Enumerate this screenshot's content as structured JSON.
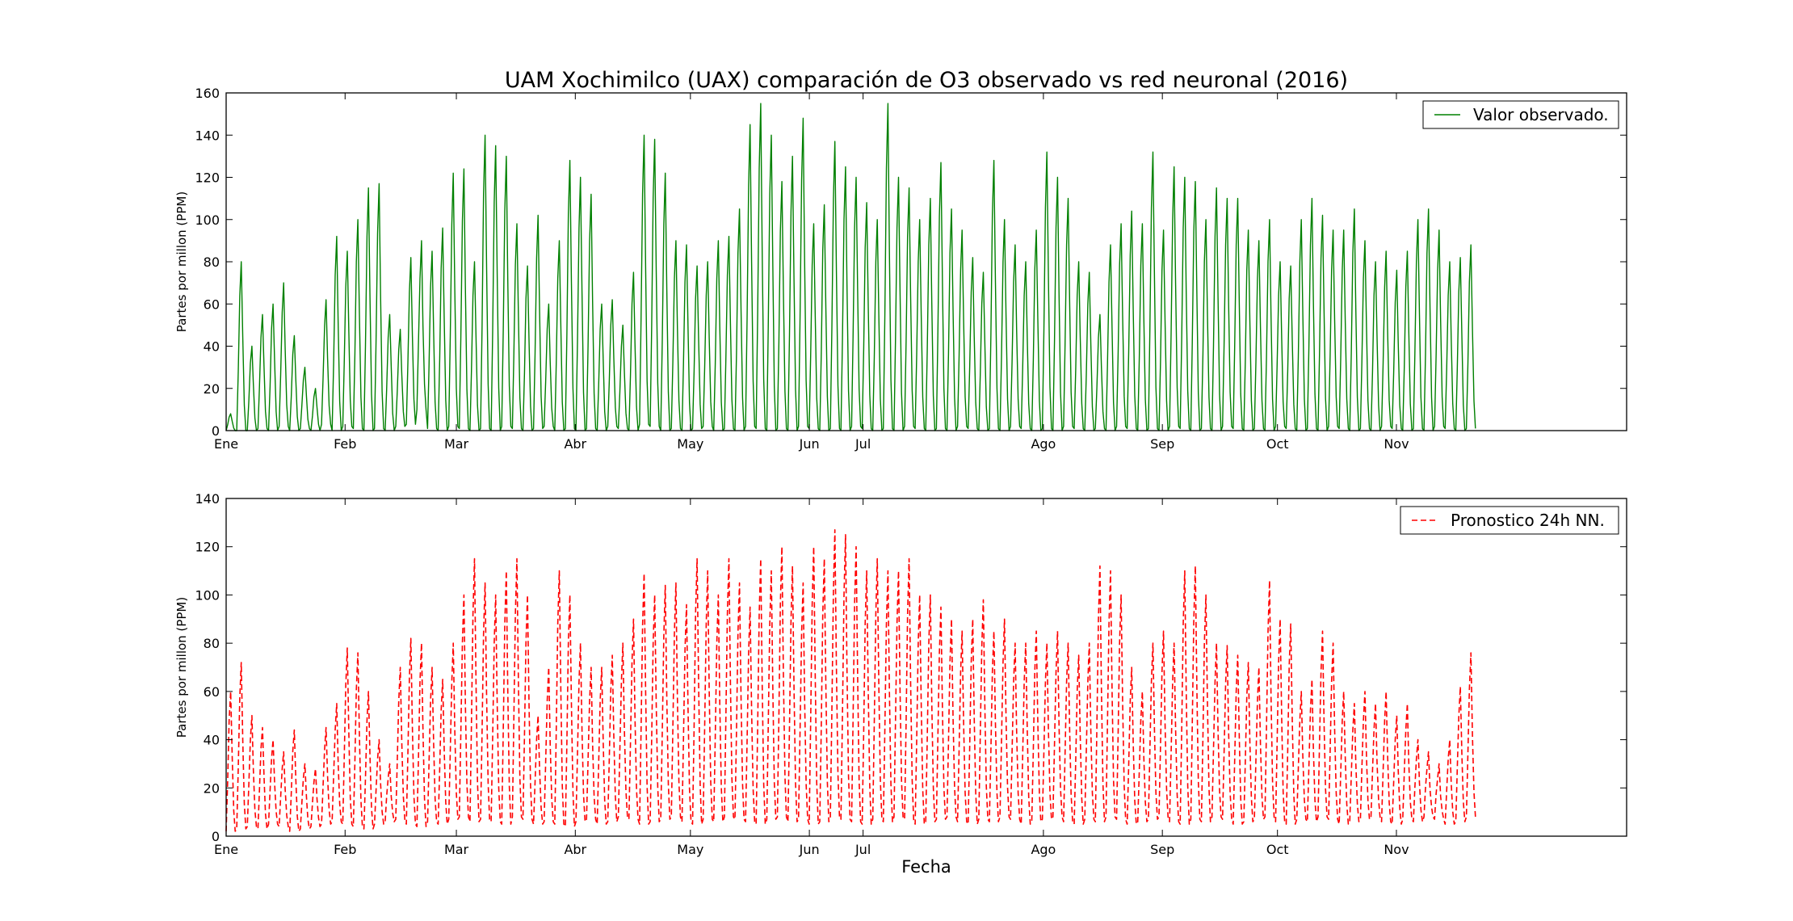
{
  "figure": {
    "title": "UAM Xochimilco (UAX) comparación de O3 observado vs red neuronal (2016)",
    "xlabel": "Fecha"
  },
  "chart_data": [
    {
      "type": "line",
      "title": "UAM Xochimilco (UAX) comparación de O3 observado vs red neuronal (2016)",
      "xlabel": "",
      "ylabel": "Partes por millon (PPM)",
      "x_axis": "date",
      "xlim": [
        "2016-01-01",
        "2016-12-31"
      ],
      "ylim": [
        0,
        160
      ],
      "yticks": [
        0,
        20,
        40,
        60,
        80,
        100,
        120,
        140,
        160
      ],
      "xticks": [
        {
          "date": "2016-01-01",
          "label": "Ene"
        },
        {
          "date": "2016-02-01",
          "label": "Feb"
        },
        {
          "date": "2016-03-01",
          "label": "Mar"
        },
        {
          "date": "2016-04-01",
          "label": "Abr"
        },
        {
          "date": "2016-05-01",
          "label": "May"
        },
        {
          "date": "2016-06-01",
          "label": "Jun"
        },
        {
          "date": "2016-06-15",
          "label": "Jul"
        },
        {
          "date": "2016-08-01",
          "label": "Ago"
        },
        {
          "date": "2016-09-01",
          "label": "Sep"
        },
        {
          "date": "2016-10-01",
          "label": "Oct"
        },
        {
          "date": "2016-11-01",
          "label": "Nov"
        }
      ],
      "legend": {
        "placement": "top-right"
      },
      "grid": false,
      "series": [
        {
          "name": "Valor observado.",
          "color": "#008000",
          "style": "solid",
          "data_range": [
            "2016-01-01",
            "2016-11-22"
          ],
          "daily_peaks": [
            8,
            80,
            40,
            55,
            60,
            70,
            45,
            30,
            20,
            62,
            92,
            85,
            100,
            115,
            117,
            55,
            48,
            82,
            90,
            85,
            96,
            122,
            124,
            80,
            140,
            135,
            130,
            98,
            78,
            102,
            60,
            90,
            128,
            120,
            112,
            60,
            62,
            50,
            75,
            140,
            138,
            122,
            90,
            88,
            78,
            80,
            90,
            92,
            105,
            145,
            155,
            140,
            118,
            130,
            148,
            98,
            107,
            137,
            125,
            120,
            108,
            100,
            155,
            120,
            115,
            100,
            110,
            127,
            105,
            95,
            82,
            75,
            128,
            100,
            88,
            80,
            95,
            132,
            120,
            110,
            80,
            75,
            55,
            88,
            98,
            104,
            98,
            132,
            95,
            125,
            120,
            118,
            100,
            115,
            110,
            110,
            95,
            90,
            100,
            80,
            78,
            100,
            110,
            102,
            95,
            95,
            105,
            90,
            80,
            85,
            76,
            85,
            100,
            105,
            95,
            80,
            82,
            88
          ],
          "daily_minima": [
            0,
            0,
            0,
            1,
            0,
            2,
            0,
            1,
            0,
            3,
            0,
            2,
            1,
            0,
            1,
            0,
            2,
            3,
            10,
            1,
            0,
            2,
            1,
            0,
            1,
            0,
            2,
            1,
            0,
            1,
            2,
            0,
            1,
            0,
            1,
            0,
            2,
            1,
            0,
            3,
            2,
            0,
            1,
            0,
            1,
            2,
            0,
            1,
            0,
            2,
            1,
            0,
            1,
            0,
            2,
            1,
            0,
            1,
            0,
            2,
            1,
            0,
            1,
            0,
            2,
            1,
            0,
            1,
            0,
            2,
            1,
            0,
            1,
            0,
            2,
            1,
            0,
            1,
            0,
            2,
            1,
            0,
            1,
            0,
            2,
            1,
            0,
            1,
            0,
            2,
            1,
            0,
            1,
            0,
            2,
            1,
            0,
            1,
            0,
            2,
            1,
            0,
            1,
            0,
            2,
            1,
            0,
            1,
            0,
            2,
            1,
            0,
            1,
            0,
            2,
            1,
            0,
            1
          ]
        }
      ]
    },
    {
      "type": "line",
      "title": "",
      "xlabel": "Fecha",
      "ylabel": "Partes por millon (PPM)",
      "x_axis": "date",
      "xlim": [
        "2016-01-01",
        "2016-12-31"
      ],
      "ylim": [
        0,
        140
      ],
      "yticks": [
        0,
        20,
        40,
        60,
        80,
        100,
        120,
        140
      ],
      "xticks": [
        {
          "date": "2016-01-01",
          "label": "Ene"
        },
        {
          "date": "2016-02-01",
          "label": "Feb"
        },
        {
          "date": "2016-03-01",
          "label": "Mar"
        },
        {
          "date": "2016-04-01",
          "label": "Abr"
        },
        {
          "date": "2016-05-01",
          "label": "May"
        },
        {
          "date": "2016-06-01",
          "label": "Jun"
        },
        {
          "date": "2016-06-15",
          "label": "Jul"
        },
        {
          "date": "2016-08-01",
          "label": "Ago"
        },
        {
          "date": "2016-09-01",
          "label": "Sep"
        },
        {
          "date": "2016-10-01",
          "label": "Oct"
        },
        {
          "date": "2016-11-01",
          "label": "Nov"
        }
      ],
      "legend": {
        "placement": "top-right"
      },
      "grid": false,
      "series": [
        {
          "name": "Pronostico 24h NN.",
          "color": "#ff0000",
          "style": "dashed",
          "data_range": [
            "2016-01-01",
            "2016-11-22"
          ],
          "daily_peaks": [
            60,
            72,
            50,
            45,
            40,
            35,
            44,
            30,
            28,
            45,
            55,
            78,
            76,
            60,
            40,
            30,
            70,
            82,
            80,
            70,
            65,
            80,
            100,
            115,
            105,
            100,
            110,
            115,
            100,
            50,
            70,
            110,
            100,
            80,
            70,
            70,
            75,
            80,
            90,
            109,
            100,
            104,
            105,
            96,
            115,
            110,
            100,
            115,
            105,
            95,
            115,
            110,
            120,
            112,
            105,
            120,
            115,
            127,
            125,
            120,
            110,
            115,
            110,
            110,
            115,
            100,
            100,
            95,
            90,
            85,
            90,
            98,
            85,
            90,
            80,
            80,
            85,
            80,
            85,
            80,
            75,
            80,
            112,
            110,
            100,
            70,
            60,
            80,
            85,
            80,
            110,
            112,
            100,
            80,
            79,
            75,
            72,
            70,
            106,
            90,
            88,
            60,
            65,
            85,
            80,
            60,
            55,
            60,
            55,
            60,
            50,
            55,
            40,
            35,
            30,
            40,
            62,
            76
          ],
          "daily_minima": [
            2,
            3,
            4,
            3,
            5,
            4,
            2,
            3,
            4,
            5,
            6,
            5,
            4,
            3,
            5,
            6,
            7,
            5,
            4,
            6,
            5,
            7,
            8,
            6,
            7,
            6,
            5,
            8,
            7,
            5,
            6,
            5,
            4,
            6,
            7,
            5,
            6,
            8,
            7,
            5,
            6,
            7,
            8,
            6,
            5,
            7,
            6,
            8,
            7,
            6,
            5,
            7,
            8,
            6,
            7,
            5,
            6,
            8,
            7,
            6,
            5,
            7,
            6,
            8,
            7,
            5,
            6,
            7,
            8,
            6,
            5,
            7,
            6,
            8,
            7,
            5,
            6,
            7,
            8,
            6,
            5,
            7,
            6,
            8,
            7,
            5,
            6,
            7,
            8,
            6,
            5,
            7,
            6,
            8,
            7,
            5,
            6,
            7,
            8,
            6,
            5,
            7,
            6,
            8,
            7,
            5,
            6,
            7,
            8,
            6,
            5,
            7,
            6,
            8,
            7,
            5,
            6,
            8
          ]
        }
      ]
    }
  ]
}
